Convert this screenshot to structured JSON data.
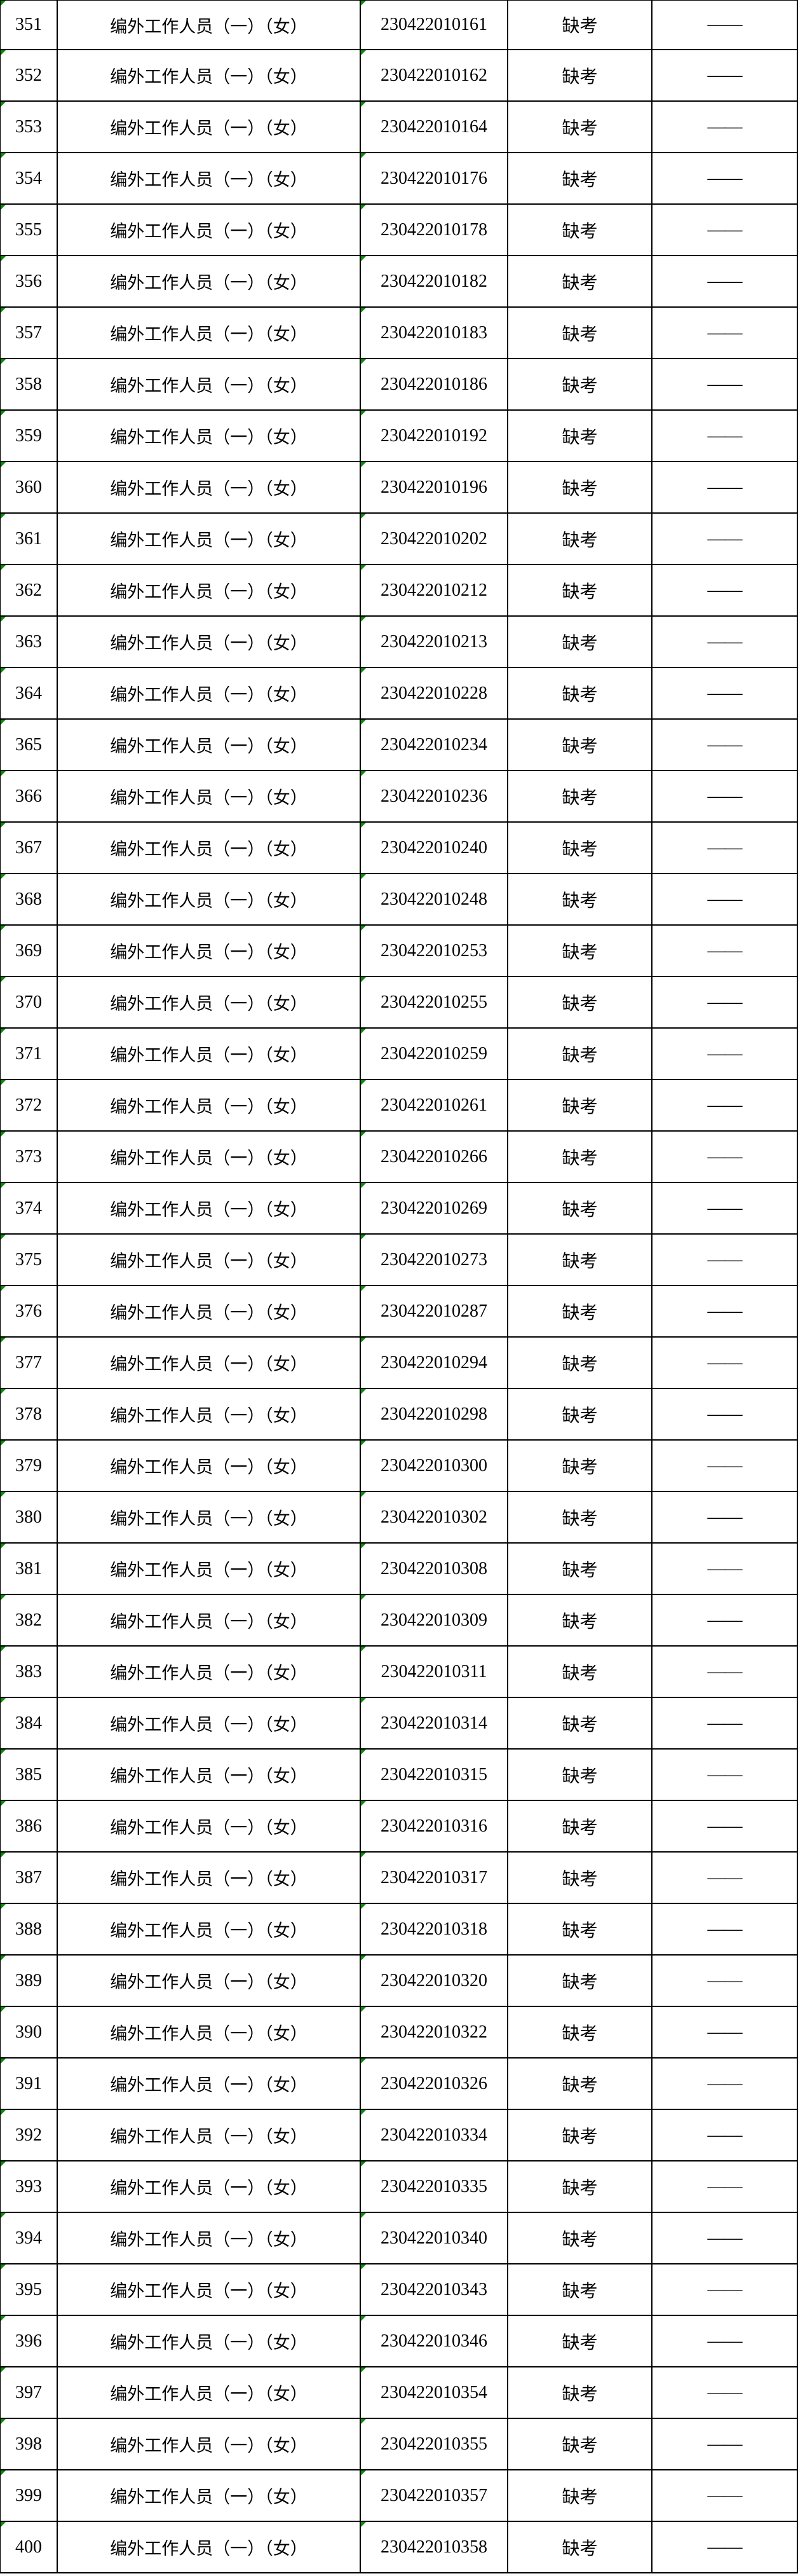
{
  "colors": {
    "flag_green": "#0a8a0a",
    "border": "#000000",
    "background": "#ffffff",
    "text": "#000000"
  },
  "table": {
    "rows": [
      {
        "no": "351",
        "position": "编外工作人员（一）（女）",
        "admission_no": "230422010161",
        "result": "缺考",
        "score": "——"
      },
      {
        "no": "352",
        "position": "编外工作人员（一）（女）",
        "admission_no": "230422010162",
        "result": "缺考",
        "score": "——"
      },
      {
        "no": "353",
        "position": "编外工作人员（一）（女）",
        "admission_no": "230422010164",
        "result": "缺考",
        "score": "——"
      },
      {
        "no": "354",
        "position": "编外工作人员（一）（女）",
        "admission_no": "230422010176",
        "result": "缺考",
        "score": "——"
      },
      {
        "no": "355",
        "position": "编外工作人员（一）（女）",
        "admission_no": "230422010178",
        "result": "缺考",
        "score": "——"
      },
      {
        "no": "356",
        "position": "编外工作人员（一）（女）",
        "admission_no": "230422010182",
        "result": "缺考",
        "score": "——"
      },
      {
        "no": "357",
        "position": "编外工作人员（一）（女）",
        "admission_no": "230422010183",
        "result": "缺考",
        "score": "——"
      },
      {
        "no": "358",
        "position": "编外工作人员（一）（女）",
        "admission_no": "230422010186",
        "result": "缺考",
        "score": "——"
      },
      {
        "no": "359",
        "position": "编外工作人员（一）（女）",
        "admission_no": "230422010192",
        "result": "缺考",
        "score": "——"
      },
      {
        "no": "360",
        "position": "编外工作人员（一）（女）",
        "admission_no": "230422010196",
        "result": "缺考",
        "score": "——"
      },
      {
        "no": "361",
        "position": "编外工作人员（一）（女）",
        "admission_no": "230422010202",
        "result": "缺考",
        "score": "——"
      },
      {
        "no": "362",
        "position": "编外工作人员（一）（女）",
        "admission_no": "230422010212",
        "result": "缺考",
        "score": "——"
      },
      {
        "no": "363",
        "position": "编外工作人员（一）（女）",
        "admission_no": "230422010213",
        "result": "缺考",
        "score": "——"
      },
      {
        "no": "364",
        "position": "编外工作人员（一）（女）",
        "admission_no": "230422010228",
        "result": "缺考",
        "score": "——"
      },
      {
        "no": "365",
        "position": "编外工作人员（一）（女）",
        "admission_no": "230422010234",
        "result": "缺考",
        "score": "——"
      },
      {
        "no": "366",
        "position": "编外工作人员（一）（女）",
        "admission_no": "230422010236",
        "result": "缺考",
        "score": "——"
      },
      {
        "no": "367",
        "position": "编外工作人员（一）（女）",
        "admission_no": "230422010240",
        "result": "缺考",
        "score": "——"
      },
      {
        "no": "368",
        "position": "编外工作人员（一）（女）",
        "admission_no": "230422010248",
        "result": "缺考",
        "score": "——"
      },
      {
        "no": "369",
        "position": "编外工作人员（一）（女）",
        "admission_no": "230422010253",
        "result": "缺考",
        "score": "——"
      },
      {
        "no": "370",
        "position": "编外工作人员（一）（女）",
        "admission_no": "230422010255",
        "result": "缺考",
        "score": "——"
      },
      {
        "no": "371",
        "position": "编外工作人员（一）（女）",
        "admission_no": "230422010259",
        "result": "缺考",
        "score": "——"
      },
      {
        "no": "372",
        "position": "编外工作人员（一）（女）",
        "admission_no": "230422010261",
        "result": "缺考",
        "score": "——"
      },
      {
        "no": "373",
        "position": "编外工作人员（一）（女）",
        "admission_no": "230422010266",
        "result": "缺考",
        "score": "——"
      },
      {
        "no": "374",
        "position": "编外工作人员（一）（女）",
        "admission_no": "230422010269",
        "result": "缺考",
        "score": "——"
      },
      {
        "no": "375",
        "position": "编外工作人员（一）（女）",
        "admission_no": "230422010273",
        "result": "缺考",
        "score": "——"
      },
      {
        "no": "376",
        "position": "编外工作人员（一）（女）",
        "admission_no": "230422010287",
        "result": "缺考",
        "score": "——"
      },
      {
        "no": "377",
        "position": "编外工作人员（一）（女）",
        "admission_no": "230422010294",
        "result": "缺考",
        "score": "——"
      },
      {
        "no": "378",
        "position": "编外工作人员（一）（女）",
        "admission_no": "230422010298",
        "result": "缺考",
        "score": "——"
      },
      {
        "no": "379",
        "position": "编外工作人员（一）（女）",
        "admission_no": "230422010300",
        "result": "缺考",
        "score": "——"
      },
      {
        "no": "380",
        "position": "编外工作人员（一）（女）",
        "admission_no": "230422010302",
        "result": "缺考",
        "score": "——"
      },
      {
        "no": "381",
        "position": "编外工作人员（一）（女）",
        "admission_no": "230422010308",
        "result": "缺考",
        "score": "——"
      },
      {
        "no": "382",
        "position": "编外工作人员（一）（女）",
        "admission_no": "230422010309",
        "result": "缺考",
        "score": "——"
      },
      {
        "no": "383",
        "position": "编外工作人员（一）（女）",
        "admission_no": "230422010311",
        "result": "缺考",
        "score": "——"
      },
      {
        "no": "384",
        "position": "编外工作人员（一）（女）",
        "admission_no": "230422010314",
        "result": "缺考",
        "score": "——"
      },
      {
        "no": "385",
        "position": "编外工作人员（一）（女）",
        "admission_no": "230422010315",
        "result": "缺考",
        "score": "——"
      },
      {
        "no": "386",
        "position": "编外工作人员（一）（女）",
        "admission_no": "230422010316",
        "result": "缺考",
        "score": "——"
      },
      {
        "no": "387",
        "position": "编外工作人员（一）（女）",
        "admission_no": "230422010317",
        "result": "缺考",
        "score": "——"
      },
      {
        "no": "388",
        "position": "编外工作人员（一）（女）",
        "admission_no": "230422010318",
        "result": "缺考",
        "score": "——"
      },
      {
        "no": "389",
        "position": "编外工作人员（一）（女）",
        "admission_no": "230422010320",
        "result": "缺考",
        "score": "——"
      },
      {
        "no": "390",
        "position": "编外工作人员（一）（女）",
        "admission_no": "230422010322",
        "result": "缺考",
        "score": "——"
      },
      {
        "no": "391",
        "position": "编外工作人员（一）（女）",
        "admission_no": "230422010326",
        "result": "缺考",
        "score": "——"
      },
      {
        "no": "392",
        "position": "编外工作人员（一）（女）",
        "admission_no": "230422010334",
        "result": "缺考",
        "score": "——"
      },
      {
        "no": "393",
        "position": "编外工作人员（一）（女）",
        "admission_no": "230422010335",
        "result": "缺考",
        "score": "——"
      },
      {
        "no": "394",
        "position": "编外工作人员（一）（女）",
        "admission_no": "230422010340",
        "result": "缺考",
        "score": "——"
      },
      {
        "no": "395",
        "position": "编外工作人员（一）（女）",
        "admission_no": "230422010343",
        "result": "缺考",
        "score": "——"
      },
      {
        "no": "396",
        "position": "编外工作人员（一）（女）",
        "admission_no": "230422010346",
        "result": "缺考",
        "score": "——"
      },
      {
        "no": "397",
        "position": "编外工作人员（一）（女）",
        "admission_no": "230422010354",
        "result": "缺考",
        "score": "——"
      },
      {
        "no": "398",
        "position": "编外工作人员（一）（女）",
        "admission_no": "230422010355",
        "result": "缺考",
        "score": "——"
      },
      {
        "no": "399",
        "position": "编外工作人员（一）（女）",
        "admission_no": "230422010357",
        "result": "缺考",
        "score": "——"
      },
      {
        "no": "400",
        "position": "编外工作人员（一）（女）",
        "admission_no": "230422010358",
        "result": "缺考",
        "score": "——"
      }
    ]
  }
}
